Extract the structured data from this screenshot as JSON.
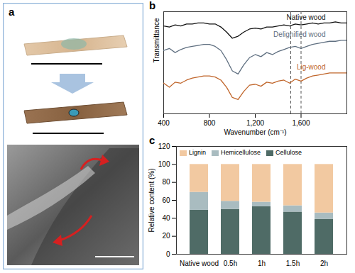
{
  "panel_a": {
    "title": "a"
  },
  "chart_data": [
    {
      "type": "line",
      "title": "b",
      "x_label": "Wavenumber (cm⁻¹)",
      "y_label": "Transmittance",
      "x": [
        400,
        450,
        500,
        550,
        600,
        650,
        700,
        750,
        800,
        850,
        900,
        950,
        1000,
        1050,
        1100,
        1150,
        1200,
        1250,
        1300,
        1350,
        1400,
        1450,
        1500,
        1550,
        1600,
        1650,
        1700,
        1750,
        1800,
        1850,
        1900,
        1950,
        2000
      ],
      "series": [
        {
          "name": "Native wood",
          "color": "#111111",
          "values": [
            8.6,
            8.5,
            8.7,
            8.6,
            8.8,
            8.8,
            8.9,
            8.9,
            8.8,
            8.8,
            8.5,
            8.0,
            7.4,
            7.6,
            8.0,
            8.3,
            8.4,
            8.3,
            8.5,
            8.5,
            8.6,
            8.7,
            8.6,
            8.8,
            8.7,
            8.8,
            8.9,
            8.8,
            8.9,
            8.9,
            9.0,
            8.9,
            8.9
          ]
        },
        {
          "name": "Delignified wood",
          "color": "#5f6f80",
          "values": [
            6.2,
            6.4,
            6.0,
            6.3,
            6.5,
            6.6,
            6.7,
            6.8,
            6.8,
            6.6,
            6.2,
            5.3,
            4.2,
            3.9,
            4.8,
            5.5,
            5.8,
            5.6,
            6.0,
            5.8,
            6.1,
            6.3,
            6.5,
            6.6,
            6.4,
            6.6,
            6.8,
            6.9,
            7.0,
            7.1,
            7.1,
            7.2,
            7.2
          ]
        },
        {
          "name": "Lig-wood",
          "color": "#c0652a",
          "values": [
            3.0,
            2.6,
            3.1,
            3.0,
            3.3,
            3.5,
            3.6,
            3.7,
            3.7,
            3.6,
            3.3,
            2.6,
            1.6,
            1.4,
            2.2,
            2.8,
            2.9,
            2.7,
            3.1,
            3.0,
            3.2,
            3.3,
            3.0,
            3.4,
            3.2,
            3.5,
            3.7,
            3.8,
            3.9,
            4.0,
            4.0,
            4.0,
            4.0
          ]
        }
      ],
      "xlim": [
        400,
        2000
      ],
      "xticks": [
        400,
        800,
        1200,
        1600
      ],
      "ylim": [
        0,
        10
      ],
      "yticks": [],
      "tick_labels": "x",
      "vlines": [
        1510,
        1600
      ],
      "line_style": "dashed"
    },
    {
      "type": "bar",
      "title": "c",
      "stacked": true,
      "y_label": "Relative content (%)",
      "categories": [
        "Native wood",
        "0.5h",
        "1h",
        "1.5h",
        "2h"
      ],
      "series": [
        {
          "name": "Cellulose",
          "color": "#4f6b66",
          "values": [
            49,
            50,
            53,
            47,
            39
          ]
        },
        {
          "name": "Hemicellulose",
          "color": "#a9bcc0",
          "values": [
            20,
            9,
            5,
            7,
            7
          ]
        },
        {
          "name": "Lignin",
          "color": "#f2c9a1",
          "values": [
            31,
            41,
            42,
            46,
            54
          ]
        }
      ],
      "ylim": [
        0,
        120
      ],
      "yticks": [
        0,
        20,
        40,
        60,
        80,
        100,
        120
      ],
      "grid": false,
      "legend": "top-left"
    }
  ]
}
